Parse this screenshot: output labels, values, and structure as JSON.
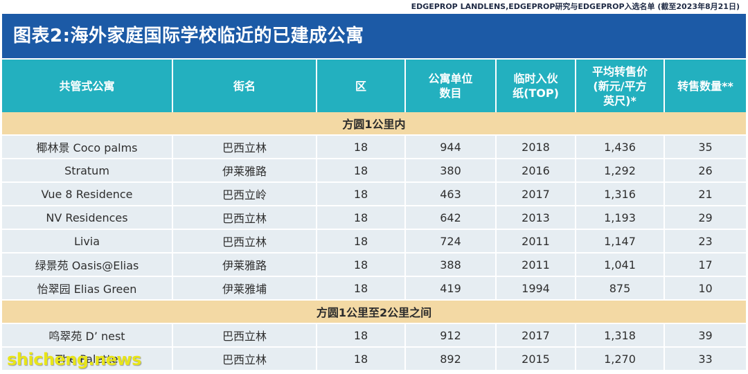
{
  "source": "EDGEPROP LANDLENS,EDGEPROP研究与EDGEPROP入选名单 (截至2023年8月21日)",
  "title": "图表2:海外家庭国际学校临近的已建成公寓",
  "columns": [
    "共管式公寓",
    "街名",
    "区",
    "公寓单位数目",
    "临时入伙纸(TOP)",
    "平均转售价(新元/平方英尺)*",
    "转售数量**"
  ],
  "columns_display": [
    [
      "共管式公寓"
    ],
    [
      "街名"
    ],
    [
      "区"
    ],
    [
      "公寓单位",
      "数目"
    ],
    [
      "临时入伙",
      "纸(TOP)"
    ],
    [
      "平均转售价",
      "(新元/平方",
      "英尺)*"
    ],
    [
      "转售数量**"
    ]
  ],
  "sections": [
    {
      "label": "方圆1公里内",
      "rows": [
        [
          "椰林景 Coco palms",
          "巴西立林",
          "18",
          "944",
          "2018",
          "1,436",
          "35"
        ],
        [
          "Stratum",
          "伊莱雅路",
          "18",
          "380",
          "2016",
          "1,292",
          "26"
        ],
        [
          "Vue 8 Residence",
          "巴西立岭",
          "18",
          "463",
          "2017",
          "1,316",
          "21"
        ],
        [
          "NV Residences",
          "巴西立林",
          "18",
          "642",
          "2013",
          "1,193",
          "29"
        ],
        [
          "Livia",
          "巴西立林",
          "18",
          "724",
          "2011",
          "1,147",
          "23"
        ],
        [
          "绿景苑 Oasis@Elias",
          "伊莱雅路",
          "18",
          "388",
          "2011",
          "1,041",
          "17"
        ],
        [
          "怡翠园 Elias Green",
          "伊莱雅埔",
          "18",
          "419",
          "1994",
          "875",
          "10"
        ]
      ]
    },
    {
      "label": "方圆1公里至2公里之间",
      "rows": [
        [
          "鸣翠苑 D’ nest",
          "巴西立林",
          "18",
          "912",
          "2017",
          "1,318",
          "39"
        ],
        [
          "The Palette",
          "巴西立林",
          "18",
          "892",
          "2015",
          "1,270",
          "33"
        ]
      ]
    }
  ],
  "watermark": "shicheng.news",
  "colors": {
    "title_bg": "#1c5aa6",
    "header_bg": "#23b0bf",
    "section_bg": "#f3d9a4",
    "row_bg": "#e6edf2",
    "watermark": "#e8e51a"
  }
}
